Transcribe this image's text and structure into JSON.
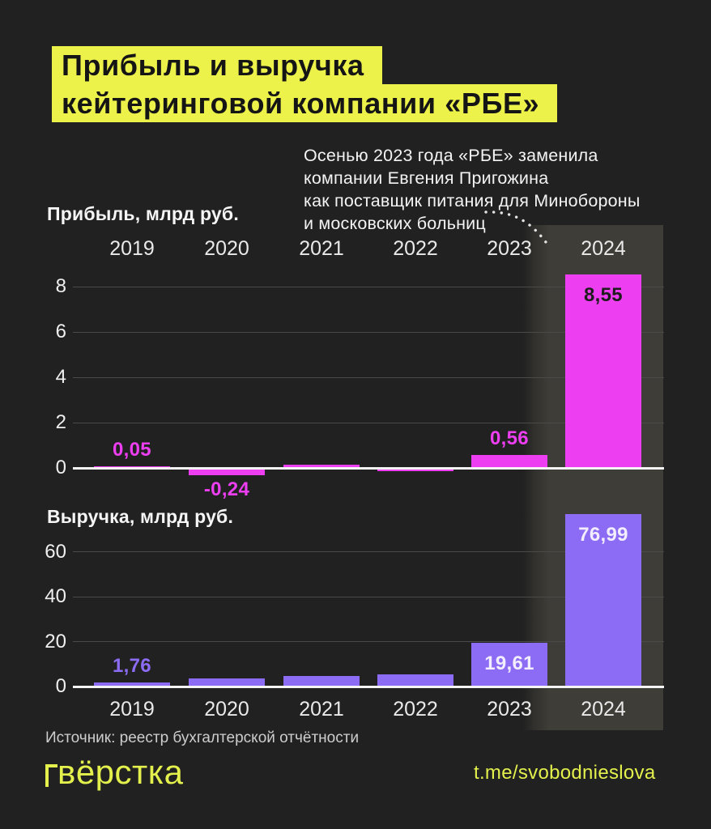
{
  "poster": {
    "title_lines": [
      "Прибыль и выручка",
      "кейтеринговой компании «РБЕ»"
    ],
    "annotation_lines": [
      "Осенью 2023 года «РБЕ» заменила",
      "компании Евгения Пригожина",
      "как поставщик питания для Минобороны",
      "и московских больниц"
    ],
    "source": "Источник: реестр бухгалтерской отчётности",
    "logo_text": "вёрстка",
    "telegram": "t.me/svobodnieslova",
    "colors": {
      "background": "#212121",
      "accent_yellow": "#edf24b",
      "profit_magenta": "#ee3ef2",
      "revenue_purple": "#8c6cf4",
      "highlight_band": "#3e3d37",
      "text_light": "#f3f3f3"
    }
  },
  "chart_data": [
    {
      "type": "bar",
      "title": "Прибыль, млрд руб.",
      "categories": [
        "2019",
        "2020",
        "2021",
        "2022",
        "2023",
        "2024"
      ],
      "values": [
        0.05,
        -0.24,
        0.15,
        -0.06,
        0.56,
        8.55
      ],
      "labels": [
        "0,05",
        "-0,24",
        "",
        "",
        "0,56",
        "8,55"
      ],
      "label_pos": [
        "above",
        "below",
        "none",
        "none",
        "above",
        "inside-top"
      ],
      "label_style": [
        "accent",
        "accent",
        "none",
        "none",
        "accent",
        "dark"
      ],
      "y_ticks": [
        8,
        6,
        4,
        2,
        0
      ],
      "ylim": [
        -0.5,
        9
      ],
      "ylabel": "млрд руб.",
      "bar_color": "#ee3ef2",
      "grid": true,
      "years_position": "top",
      "highlighted_category": "2024"
    },
    {
      "type": "bar",
      "title": "Выручка, млрд руб.",
      "categories": [
        "2019",
        "2020",
        "2021",
        "2022",
        "2023",
        "2024"
      ],
      "values": [
        1.76,
        3.5,
        4.8,
        5.5,
        19.61,
        76.99
      ],
      "labels": [
        "1,76",
        "",
        "",
        "",
        "19,61",
        "76,99"
      ],
      "label_pos": [
        "above",
        "none",
        "none",
        "none",
        "inside-top",
        "inside-top"
      ],
      "label_style": [
        "accent",
        "none",
        "none",
        "none",
        "light",
        "light"
      ],
      "y_ticks": [
        60,
        40,
        20,
        0
      ],
      "ylim": [
        0,
        80
      ],
      "ylabel": "млрд руб.",
      "bar_color": "#8c6cf4",
      "grid": true,
      "years_position": "bottom",
      "highlighted_category": "2024"
    }
  ]
}
